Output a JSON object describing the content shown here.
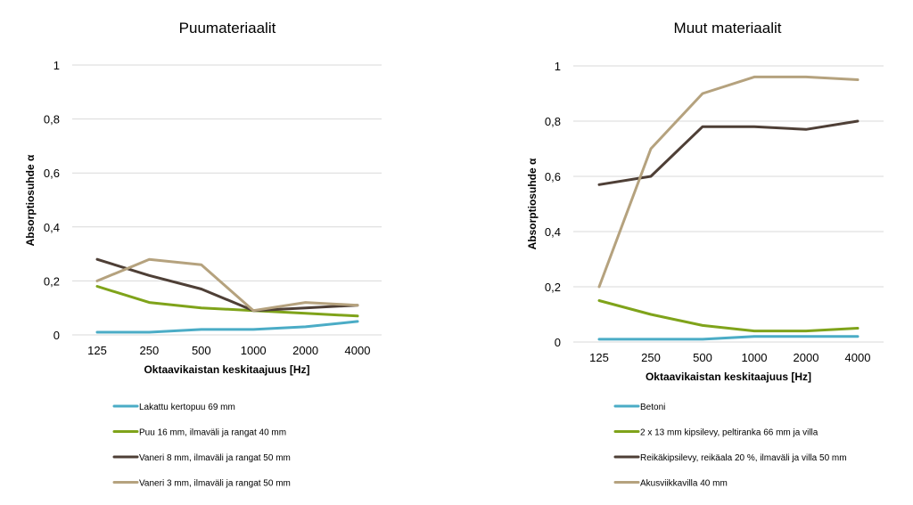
{
  "chart_data": [
    {
      "type": "line",
      "title": "Puumateriaalit",
      "xlabel": "Oktaavikaistan keskitaajuus [Hz]",
      "ylabel": "Absorptiosuhde α",
      "categories": [
        "125",
        "250",
        "500",
        "1000",
        "2000",
        "4000"
      ],
      "ylim": [
        0,
        1
      ],
      "yticks": [
        0,
        0.2,
        0.4,
        0.6,
        0.8,
        1
      ],
      "ytick_labels": [
        "0",
        "0,2",
        "0,4",
        "0,6",
        "0,8",
        "1"
      ],
      "grid": true,
      "legend_position": "bottom",
      "series": [
        {
          "name": "Lakattu kertopuu 69 mm",
          "color": "#4BACC6",
          "values": [
            0.01,
            0.01,
            0.02,
            0.02,
            0.03,
            0.05
          ]
        },
        {
          "name": "Puu 16 mm, ilmaväli ja rangat 40 mm",
          "color": "#7FA31A",
          "values": [
            0.18,
            0.12,
            0.1,
            0.09,
            0.08,
            0.07
          ]
        },
        {
          "name": "Vaneri 8 mm, ilmaväli ja rangat 50 mm",
          "color": "#4E3F36",
          "values": [
            0.28,
            0.22,
            0.17,
            0.09,
            0.1,
            0.11
          ]
        },
        {
          "name": "Vaneri 3 mm, ilmaväli ja rangat 50 mm",
          "color": "#B5A27E",
          "values": [
            0.2,
            0.28,
            0.26,
            0.09,
            0.12,
            0.11
          ]
        }
      ]
    },
    {
      "type": "line",
      "title": "Muut materiaalit",
      "xlabel": "Oktaavikaistan keskitaajuus [Hz]",
      "ylabel": "Absorptiosuhde α",
      "categories": [
        "125",
        "250",
        "500",
        "1000",
        "2000",
        "4000"
      ],
      "ylim": [
        0,
        1
      ],
      "yticks": [
        0,
        0.2,
        0.4,
        0.6,
        0.8,
        1
      ],
      "ytick_labels": [
        "0",
        "0,2",
        "0,4",
        "0,6",
        "0,8",
        "1"
      ],
      "grid": true,
      "legend_position": "bottom",
      "series": [
        {
          "name": "Betoni",
          "color": "#4BACC6",
          "values": [
            0.01,
            0.01,
            0.01,
            0.02,
            0.02,
            0.02
          ]
        },
        {
          "name": "2 x 13 mm kipsilevy, peltiranka 66 mm ja villa",
          "color": "#7FA31A",
          "values": [
            0.15,
            0.1,
            0.06,
            0.04,
            0.04,
            0.05
          ]
        },
        {
          "name": "Reikäkipsilevy, reikäala 20 %, ilmaväli ja villa 50 mm",
          "color": "#4E3F36",
          "values": [
            0.57,
            0.6,
            0.78,
            0.78,
            0.77,
            0.8
          ]
        },
        {
          "name": "Akusviikkavilla 40 mm",
          "color": "#B5A27E",
          "values": [
            0.2,
            0.7,
            0.9,
            0.96,
            0.96,
            0.95
          ]
        }
      ]
    }
  ]
}
